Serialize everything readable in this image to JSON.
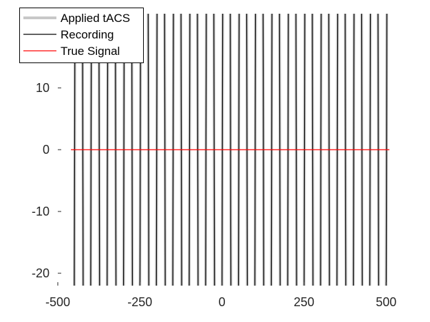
{
  "chart_data": {
    "type": "line",
    "title": "",
    "xlabel": "",
    "ylabel": "",
    "xlim": [
      -500,
      510
    ],
    "ylim": [
      -22,
      22
    ],
    "x_ticks": [
      -500,
      -250,
      0,
      250,
      500
    ],
    "x_tick_labels": [
      "-500",
      "-250",
      "0",
      "250",
      "500"
    ],
    "y_ticks": [
      -20,
      -10,
      0,
      10
    ],
    "y_tick_labels": [
      "-20",
      "-10",
      "0",
      "10"
    ],
    "grid": false,
    "legend_position": "top-left",
    "series": [
      {
        "name": "Applied tACS",
        "color": "#c8c8c8",
        "style": "thick",
        "description_of_values": "sawtooth oscillation spanning beyond the y-limits",
        "period": 50,
        "x_start": -450,
        "x_end": 505
      },
      {
        "name": "Recording",
        "color": "#000000",
        "style": "thin",
        "period": 50,
        "x_start": -450,
        "x_end": 505
      },
      {
        "name": "True Signal",
        "color": "#ff0000",
        "style": "thin",
        "x": [
          -460,
          510
        ],
        "y": [
          0,
          0
        ]
      }
    ]
  }
}
